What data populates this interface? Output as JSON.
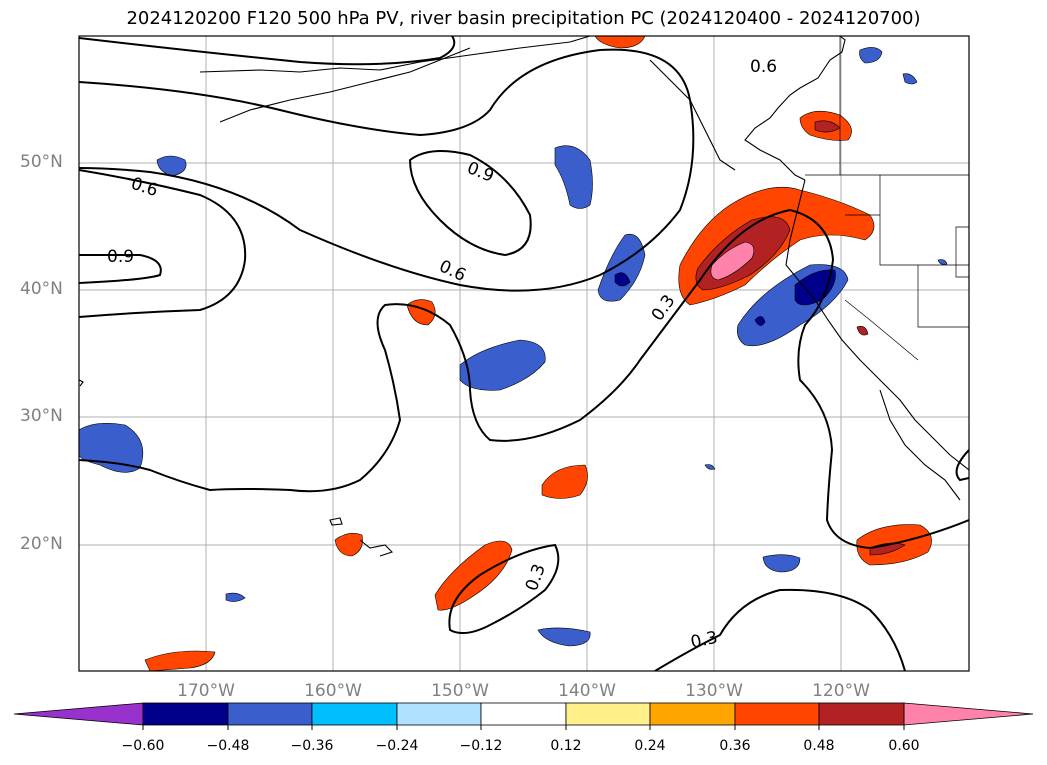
{
  "title": "2024120200 F120 500 hPa PV, river basin precipitation PC (2024120400 - 2024120700)",
  "lat_labels": [
    "50°N",
    "40°N",
    "30°N",
    "20°N"
  ],
  "lon_labels": [
    "170°W",
    "160°W",
    "150°W",
    "140°W",
    "130°W",
    "120°W"
  ],
  "contour_labels": [
    "0.6",
    "0.9",
    "0.9",
    "0.6",
    "0.3",
    "0.6",
    "0.3",
    "0.3"
  ],
  "colorbar": {
    "ticks": [
      "−0.60",
      "−0.48",
      "−0.36",
      "−0.24",
      "−0.12",
      "0.12",
      "0.24",
      "0.36",
      "0.48",
      "0.60"
    ],
    "colors": {
      "under": "#9932cc",
      "bins": [
        "#00008b",
        "#3a5fcd",
        "#00bfff",
        "#b0e2ff",
        "#ffffff",
        "#fff08c",
        "#ffa500",
        "#ff4500",
        "#b22222",
        "#ff82ab"
      ],
      "over": "#ff82ab"
    }
  }
}
